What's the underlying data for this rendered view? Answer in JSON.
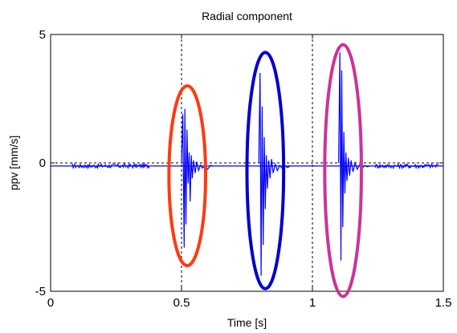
{
  "chart_data": {
    "type": "line",
    "title": "Radial component",
    "xlabel": "Time [s]",
    "ylabel": "ppv  [mm/s]",
    "xlim": [
      0,
      1.5
    ],
    "ylim": [
      -5,
      5
    ],
    "x_ticks": [
      0,
      0.5,
      1,
      1.5
    ],
    "x_tick_labels": [
      "0",
      "0.5",
      "1",
      "1.5"
    ],
    "y_ticks": [
      -5,
      0,
      5
    ],
    "y_tick_labels": [
      "-5",
      "0",
      "5"
    ],
    "grid": false,
    "series_color": "#0000ff",
    "baseline": -0.12,
    "noise_segments": [
      [
        0.08,
        0.38
      ],
      [
        1.24,
        1.48
      ]
    ],
    "bursts": [
      {
        "name": "burst-1",
        "points": [
          [
            0.5,
            0
          ],
          [
            0.505,
            1.9
          ],
          [
            0.51,
            -3.3
          ],
          [
            0.513,
            2.1
          ],
          [
            0.517,
            -2.4
          ],
          [
            0.521,
            1.3
          ],
          [
            0.525,
            -0.8
          ],
          [
            0.529,
            0.4
          ],
          [
            0.533,
            -1.5
          ],
          [
            0.537,
            0.3
          ],
          [
            0.541,
            -0.6
          ],
          [
            0.546,
            0.1
          ],
          [
            0.552,
            -0.4
          ],
          [
            0.558,
            0.05
          ],
          [
            0.565,
            -0.3
          ],
          [
            0.572,
            -0.08
          ],
          [
            0.58,
            -0.2
          ],
          [
            0.59,
            -0.1
          ],
          [
            0.6,
            -0.25
          ],
          [
            0.61,
            -0.1
          ],
          [
            0.62,
            -0.12
          ]
        ]
      },
      {
        "name": "burst-2",
        "points": [
          [
            0.795,
            0
          ],
          [
            0.8,
            3.5
          ],
          [
            0.804,
            -4.4
          ],
          [
            0.808,
            2.2
          ],
          [
            0.812,
            -3.2
          ],
          [
            0.816,
            1.0
          ],
          [
            0.82,
            -1.8
          ],
          [
            0.824,
            0.3
          ],
          [
            0.828,
            -1.0
          ],
          [
            0.833,
            0.1
          ],
          [
            0.838,
            -0.6
          ],
          [
            0.844,
            0.15
          ],
          [
            0.85,
            -0.4
          ],
          [
            0.858,
            -0.05
          ],
          [
            0.866,
            -0.3
          ],
          [
            0.875,
            -0.1
          ],
          [
            0.885,
            -0.22
          ],
          [
            0.895,
            -0.12
          ],
          [
            0.905,
            -0.18
          ],
          [
            0.915,
            -0.12
          ]
        ]
      },
      {
        "name": "burst-3",
        "points": [
          [
            1.1,
            0
          ],
          [
            1.105,
            4.3
          ],
          [
            1.109,
            -3.8
          ],
          [
            1.112,
            3.6
          ],
          [
            1.116,
            -2.5
          ],
          [
            1.12,
            1.2
          ],
          [
            1.124,
            -1.2
          ],
          [
            1.128,
            0.4
          ],
          [
            1.132,
            -0.7
          ],
          [
            1.137,
            0.2
          ],
          [
            1.142,
            -0.5
          ],
          [
            1.148,
            0.1
          ],
          [
            1.155,
            -0.35
          ],
          [
            1.163,
            0.0
          ],
          [
            1.171,
            -0.25
          ],
          [
            1.18,
            -0.08
          ],
          [
            1.19,
            -0.2
          ],
          [
            1.2,
            -0.1
          ],
          [
            1.21,
            -0.15
          ],
          [
            1.22,
            -0.12
          ]
        ]
      }
    ],
    "reference_lines": {
      "vertical_x": [
        0.5,
        1.0
      ],
      "horizontal_y": 0,
      "style": "dashed",
      "color": "#000000"
    },
    "highlight_ellipses": [
      {
        "name": "ellipse-red",
        "color": "#ff3a10",
        "center_x": 0.522,
        "center_y": -0.5,
        "rx": 0.07,
        "ry": 3.5
      },
      {
        "name": "ellipse-blue",
        "color": "#0000cc",
        "center_x": 0.82,
        "center_y": -0.3,
        "rx": 0.07,
        "ry": 4.6
      },
      {
        "name": "ellipse-magenta",
        "color": "#cc3399",
        "center_x": 1.117,
        "center_y": -0.3,
        "rx": 0.07,
        "ry": 4.9
      }
    ]
  }
}
